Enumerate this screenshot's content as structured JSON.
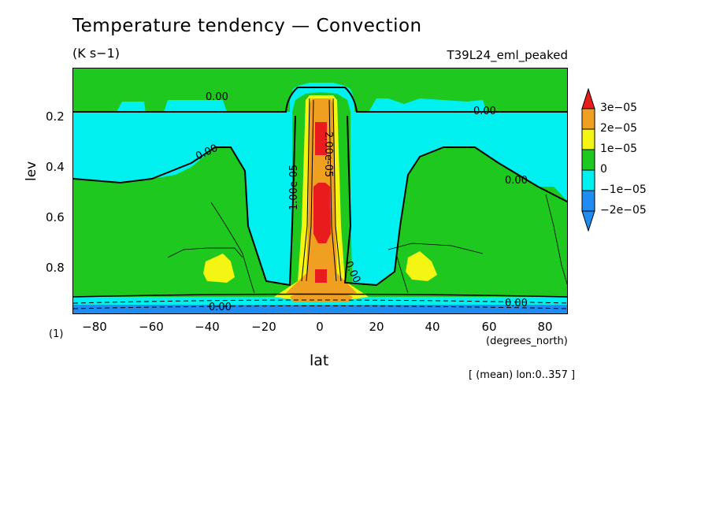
{
  "header": {
    "title": "Temperature tendency — Convection",
    "units": "(K s−1)",
    "run_name": "T39L24_eml_peaked"
  },
  "axes": {
    "ylabel": "lev",
    "xlabel": "lat",
    "x_units": "(degrees_north)",
    "y_units": "(1)",
    "note": "[ (mean) lon:0..357 ]",
    "x_ticks": [
      "−80",
      "−60",
      "−40",
      "−20",
      "0",
      "20",
      "40",
      "60",
      "80"
    ],
    "y_ticks": [
      "0.2",
      "0.4",
      "0.6",
      "0.8"
    ]
  },
  "legend": {
    "labels": [
      "3e−05",
      "2e−05",
      "1e−05",
      "0",
      "−1e−05",
      "−2e−05"
    ],
    "colors": [
      "#e81c1c",
      "#f0a020",
      "#f5f514",
      "#1ec81e",
      "#00f0f0",
      "#1e8cf0"
    ]
  },
  "contour_labels": [
    "0.00",
    "0.00",
    "0.00",
    "0.00",
    "0.00",
    "0.00",
    "0.00",
    "1.00e-05",
    "2.00e-05"
  ],
  "chart_data": {
    "type": "heatmap",
    "title": "Temperature tendency — Convection",
    "subtitle": "(K s−1)",
    "xlabel": "lat",
    "ylabel": "lev",
    "xlim": [
      -88,
      88
    ],
    "ylim": [
      1.0,
      0.0
    ],
    "levels": [
      -2e-05,
      -1e-05,
      0,
      1e-05,
      2e-05,
      3e-05
    ],
    "colorbar": "right"
  }
}
